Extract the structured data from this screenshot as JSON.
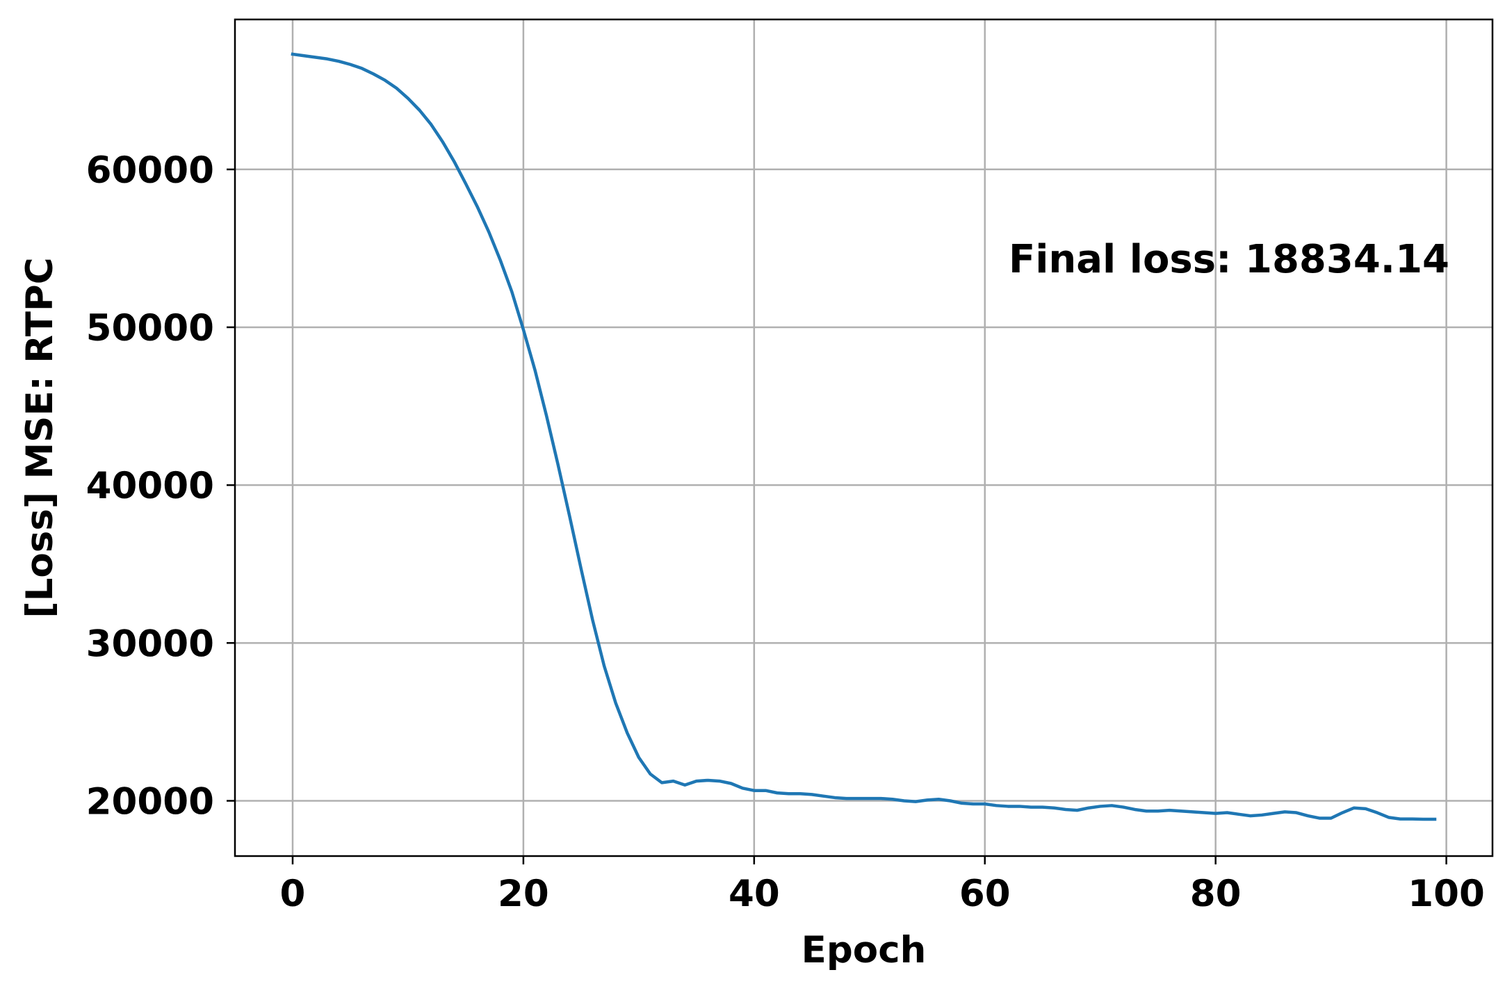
{
  "chart_data": {
    "type": "line",
    "title": "",
    "xlabel": "Epoch",
    "ylabel": "[Loss] MSE: RTPC",
    "xlim": [
      -5,
      104
    ],
    "ylim": [
      16500,
      69500
    ],
    "xticks": [
      0,
      20,
      40,
      60,
      80,
      100
    ],
    "yticks": [
      20000,
      30000,
      40000,
      50000,
      60000
    ],
    "xtick_labels": [
      "0",
      "20",
      "40",
      "60",
      "80",
      "100"
    ],
    "ytick_labels": [
      "20000",
      "30000",
      "40000",
      "50000",
      "60000"
    ],
    "grid": true,
    "line_color": "#1f77b4",
    "annotation": "Final loss: 18834.14",
    "series": [
      {
        "x": [
          0,
          1,
          2,
          3,
          4,
          5,
          6,
          7,
          8,
          9,
          10,
          11,
          12,
          13,
          14,
          15,
          16,
          17,
          18,
          19,
          20,
          21,
          22,
          23,
          24,
          25,
          26,
          27,
          28,
          29,
          30,
          31,
          32,
          33,
          34,
          35,
          36,
          37,
          38,
          39,
          40,
          41,
          42,
          43,
          44,
          45,
          46,
          47,
          48,
          49,
          50,
          51,
          52,
          53,
          54,
          55,
          56,
          57,
          58,
          59,
          60,
          61,
          62,
          63,
          64,
          65,
          66,
          67,
          68,
          69,
          70,
          71,
          72,
          73,
          74,
          75,
          76,
          77,
          78,
          79,
          80,
          81,
          82,
          83,
          84,
          85,
          86,
          87,
          88,
          89,
          90,
          91,
          92,
          93,
          94,
          95,
          96,
          97,
          98,
          99
        ],
        "y": [
          67300,
          67200,
          67100,
          67000,
          66850,
          66650,
          66400,
          66050,
          65650,
          65150,
          64500,
          63750,
          62850,
          61750,
          60500,
          59100,
          57650,
          56050,
          54250,
          52250,
          49850,
          47300,
          44400,
          41300,
          38050,
          34700,
          31450,
          28550,
          26200,
          24300,
          22750,
          21700,
          21150,
          21250,
          21000,
          21250,
          21300,
          21250,
          21100,
          20800,
          20650,
          20650,
          20500,
          20450,
          20450,
          20400,
          20300,
          20200,
          20150,
          20150,
          20150,
          20150,
          20100,
          20000,
          19950,
          20050,
          20100,
          20000,
          19850,
          19800,
          19800,
          19700,
          19650,
          19650,
          19600,
          19600,
          19550,
          19450,
          19400,
          19550,
          19650,
          19700,
          19600,
          19450,
          19350,
          19350,
          19400,
          19350,
          19300,
          19250,
          19200,
          19250,
          19150,
          19050,
          19100,
          19200,
          19300,
          19250,
          19050,
          18900,
          18900,
          19250,
          19550,
          19500,
          19250,
          18950,
          18850,
          18850,
          18834,
          18834
        ]
      }
    ]
  }
}
